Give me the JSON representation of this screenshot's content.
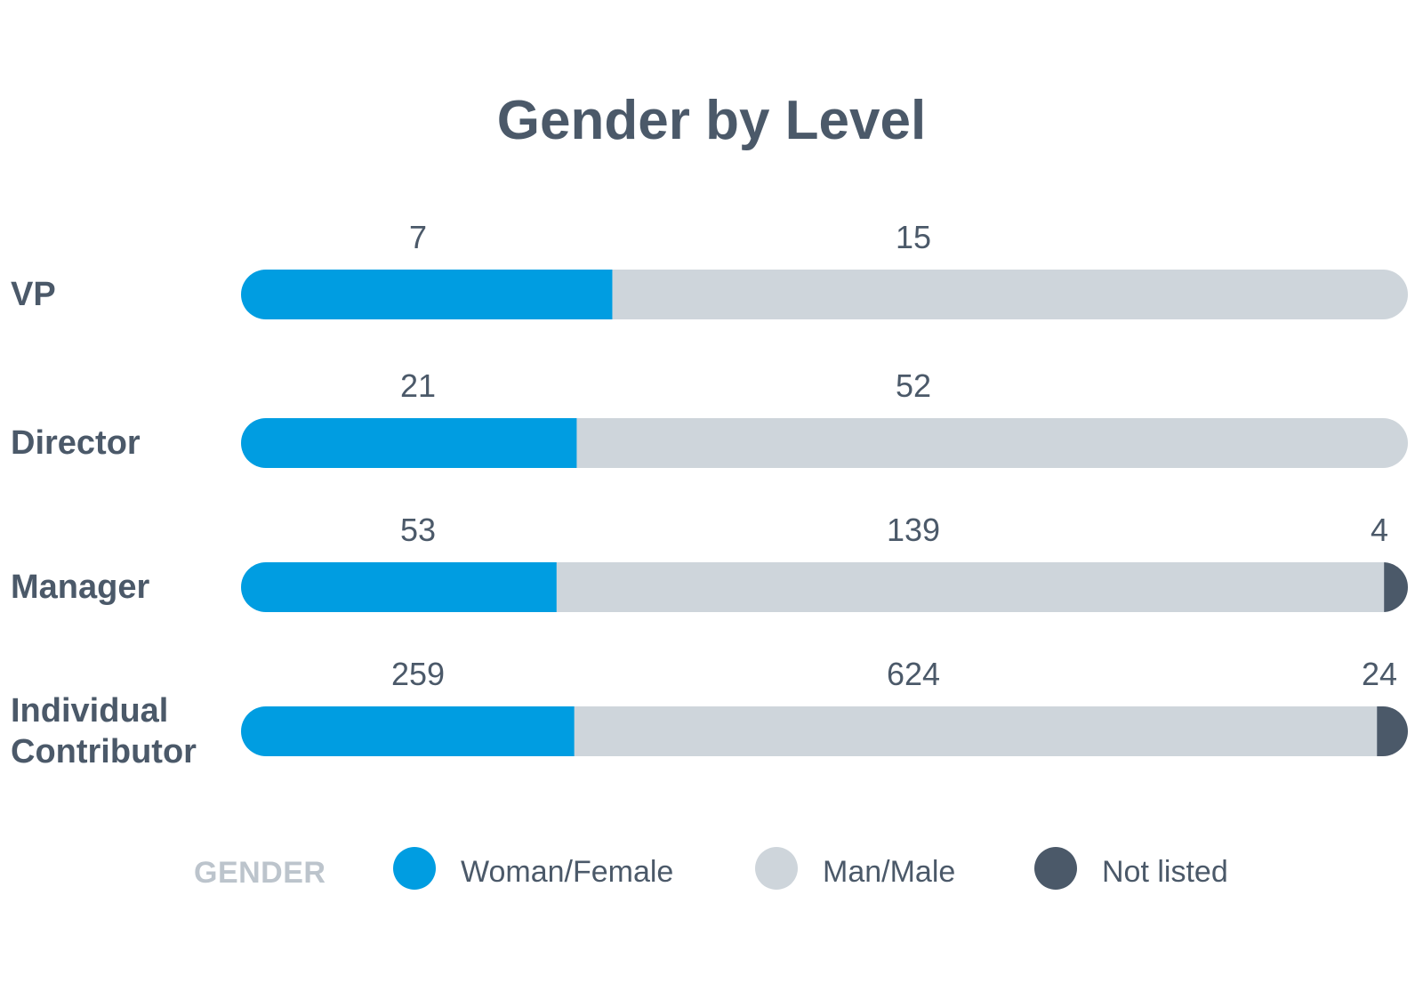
{
  "chart_data": {
    "type": "bar",
    "stacked": true,
    "orientation": "horizontal",
    "normalized": true,
    "title": "Gender by Level",
    "categories": [
      "VP",
      "Director",
      "Manager",
      "Individual Contributor"
    ],
    "series": [
      {
        "name": "Woman/Female",
        "color": "#009de1",
        "values": [
          7,
          21,
          53,
          259
        ]
      },
      {
        "name": "Man/Male",
        "color": "#ced5db",
        "values": [
          15,
          52,
          139,
          624
        ]
      },
      {
        "name": "Not listed",
        "color": "#4b5969",
        "values": [
          0,
          0,
          4,
          24
        ]
      }
    ],
    "legend": {
      "title": "GENDER",
      "placement": "bottom"
    },
    "grid": false
  }
}
